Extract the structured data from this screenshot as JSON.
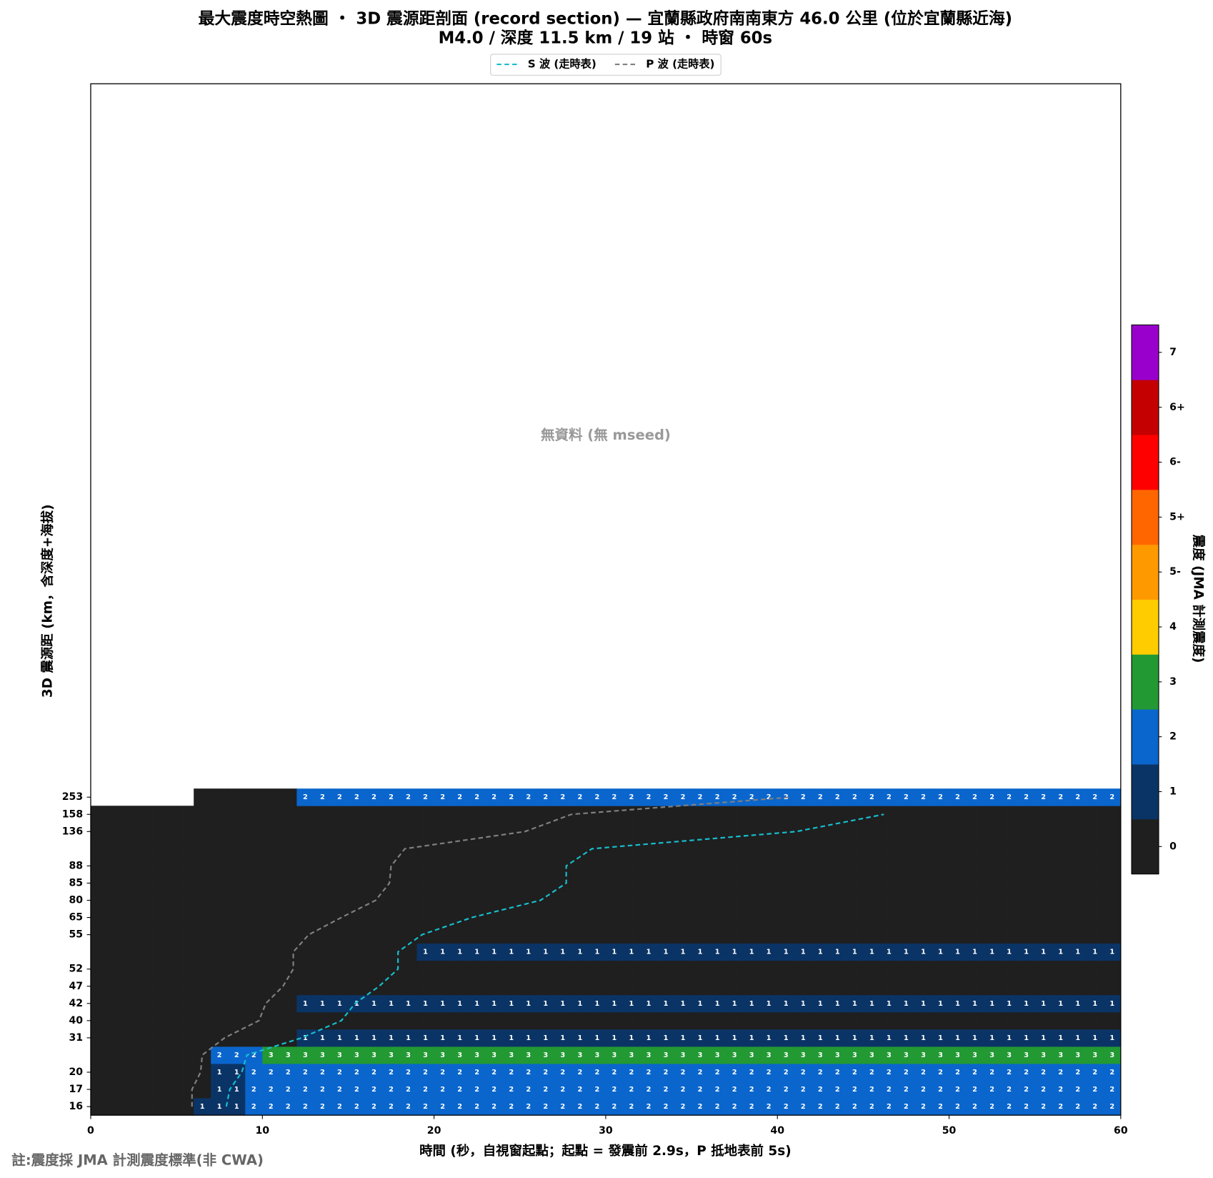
{
  "chart_data": {
    "type": "heatmap",
    "title": "最大震度時空熱圖 ・ 3D 震源距剖面 (record section) — 宜蘭縣政府南南東方  46.0  公里 (位於宜蘭縣近海)",
    "subtitle": "M4.0 / 深度 11.5 km / 19 站 ・ 時窗 60s",
    "x_label": "時間 (秒，自視窗起點；起點 = 發震前 2.9s，P 抵地表前 5s)",
    "y_label": "3D 震源距 (km，含深度+海拔)",
    "colorbar_label": "震度 (JMA 計測震度)",
    "annotation": "無資料 (無 mseed)",
    "categories": [
      "16",
      "17",
      "20",
      null,
      "31",
      "40",
      "42",
      "47",
      "52",
      null,
      "55",
      "65",
      "80",
      "85",
      "88",
      null,
      "136",
      "158",
      "253"
    ],
    "bins": [
      0,
      1,
      2,
      3,
      4,
      5,
      6,
      7,
      8,
      9,
      10,
      11,
      12,
      13,
      14,
      15,
      16,
      17,
      18,
      19,
      20,
      21,
      22,
      23,
      24,
      25,
      26,
      27,
      28,
      29,
      30,
      31,
      32,
      33,
      34,
      35,
      36,
      37,
      38,
      39,
      40,
      41,
      42,
      43,
      44,
      45,
      46,
      47,
      48,
      49,
      50,
      51,
      52,
      53,
      54,
      55,
      56,
      57,
      58,
      59,
      60
    ],
    "xlim": [
      0,
      60
    ],
    "xticks": [
      0,
      10,
      20,
      30,
      40,
      50,
      60
    ],
    "levels": [
      "0",
      "1",
      "2",
      "3",
      "4",
      "5-",
      "5+",
      "6-",
      "6+",
      "7"
    ],
    "colors": [
      "#1f1f1f",
      "#0b3466",
      "#0a66cc",
      "#229933",
      "#ffcc00",
      "#ff9900",
      "#ff6600",
      "#ff0000",
      "#c40000",
      "#9900cc"
    ],
    "cells": [
      [
        0,
        0,
        0,
        0,
        0,
        0,
        1,
        1,
        1,
        2,
        2,
        2,
        2,
        2,
        2,
        2,
        2,
        2,
        2,
        2,
        2,
        2,
        2,
        2,
        2,
        2,
        2,
        2,
        2,
        2,
        2,
        2,
        2,
        2,
        2,
        2,
        2,
        2,
        2,
        2,
        2,
        2,
        2,
        2,
        2,
        2,
        2,
        2,
        2,
        2,
        2,
        2,
        2,
        2,
        2,
        2,
        2,
        2,
        2,
        2
      ],
      [
        0,
        0,
        0,
        0,
        0,
        0,
        0,
        1,
        1,
        2,
        2,
        2,
        2,
        2,
        2,
        2,
        2,
        2,
        2,
        2,
        2,
        2,
        2,
        2,
        2,
        2,
        2,
        2,
        2,
        2,
        2,
        2,
        2,
        2,
        2,
        2,
        2,
        2,
        2,
        2,
        2,
        2,
        2,
        2,
        2,
        2,
        2,
        2,
        2,
        2,
        2,
        2,
        2,
        2,
        2,
        2,
        2,
        2,
        2,
        2
      ],
      [
        0,
        0,
        0,
        0,
        0,
        0,
        0,
        1,
        1,
        2,
        2,
        2,
        2,
        2,
        2,
        2,
        2,
        2,
        2,
        2,
        2,
        2,
        2,
        2,
        2,
        2,
        2,
        2,
        2,
        2,
        2,
        2,
        2,
        2,
        2,
        2,
        2,
        2,
        2,
        2,
        2,
        2,
        2,
        2,
        2,
        2,
        2,
        2,
        2,
        2,
        2,
        2,
        2,
        2,
        2,
        2,
        2,
        2,
        2,
        2
      ],
      [
        0,
        0,
        0,
        0,
        0,
        0,
        0,
        2,
        2,
        2,
        3,
        3,
        3,
        3,
        3,
        3,
        3,
        3,
        3,
        3,
        3,
        3,
        3,
        3,
        3,
        3,
        3,
        3,
        3,
        3,
        3,
        3,
        3,
        3,
        3,
        3,
        3,
        3,
        3,
        3,
        3,
        3,
        3,
        3,
        3,
        3,
        3,
        3,
        3,
        3,
        3,
        3,
        3,
        3,
        3,
        3,
        3,
        3,
        3,
        3
      ],
      [
        0,
        0,
        0,
        0,
        0,
        0,
        0,
        0,
        0,
        0,
        0,
        0,
        1,
        1,
        1,
        1,
        1,
        1,
        1,
        1,
        1,
        1,
        1,
        1,
        1,
        1,
        1,
        1,
        1,
        1,
        1,
        1,
        1,
        1,
        1,
        1,
        1,
        1,
        1,
        1,
        1,
        1,
        1,
        1,
        1,
        1,
        1,
        1,
        1,
        1,
        1,
        1,
        1,
        1,
        1,
        1,
        1,
        1,
        1,
        1
      ],
      [
        0,
        0,
        0,
        0,
        0,
        0,
        0,
        0,
        0,
        0,
        0,
        0,
        0,
        0,
        0,
        0,
        0,
        0,
        0,
        0,
        0,
        0,
        0,
        0,
        0,
        0,
        0,
        0,
        0,
        0,
        0,
        0,
        0,
        0,
        0,
        0,
        0,
        0,
        0,
        0,
        0,
        0,
        0,
        0,
        0,
        0,
        0,
        0,
        0,
        0,
        0,
        0,
        0,
        0,
        0,
        0,
        0,
        0,
        0,
        0
      ],
      [
        0,
        0,
        0,
        0,
        0,
        0,
        0,
        0,
        0,
        0,
        0,
        0,
        1,
        1,
        1,
        1,
        1,
        1,
        1,
        1,
        1,
        1,
        1,
        1,
        1,
        1,
        1,
        1,
        1,
        1,
        1,
        1,
        1,
        1,
        1,
        1,
        1,
        1,
        1,
        1,
        1,
        1,
        1,
        1,
        1,
        1,
        1,
        1,
        1,
        1,
        1,
        1,
        1,
        1,
        1,
        1,
        1,
        1,
        1,
        1
      ],
      [
        0,
        0,
        0,
        0,
        0,
        0,
        0,
        0,
        0,
        0,
        0,
        0,
        0,
        0,
        0,
        0,
        0,
        0,
        0,
        0,
        0,
        0,
        0,
        0,
        0,
        0,
        0,
        0,
        0,
        0,
        0,
        0,
        0,
        0,
        0,
        0,
        0,
        0,
        0,
        0,
        0,
        0,
        0,
        0,
        0,
        0,
        0,
        0,
        0,
        0,
        0,
        0,
        0,
        0,
        0,
        0,
        0,
        0,
        0,
        0
      ],
      [
        0,
        0,
        0,
        0,
        0,
        0,
        0,
        0,
        0,
        0,
        0,
        0,
        0,
        0,
        0,
        0,
        0,
        0,
        0,
        0,
        0,
        0,
        0,
        0,
        0,
        0,
        0,
        0,
        0,
        0,
        0,
        0,
        0,
        0,
        0,
        0,
        0,
        0,
        0,
        0,
        0,
        0,
        0,
        0,
        0,
        0,
        0,
        0,
        0,
        0,
        0,
        0,
        0,
        0,
        0,
        0,
        0,
        0,
        0,
        0
      ],
      [
        0,
        0,
        0,
        0,
        0,
        0,
        0,
        0,
        0,
        0,
        0,
        0,
        0,
        0,
        0,
        0,
        0,
        0,
        0,
        1,
        1,
        1,
        1,
        1,
        1,
        1,
        1,
        1,
        1,
        1,
        1,
        1,
        1,
        1,
        1,
        1,
        1,
        1,
        1,
        1,
        1,
        1,
        1,
        1,
        1,
        1,
        1,
        1,
        1,
        1,
        1,
        1,
        1,
        1,
        1,
        1,
        1,
        1,
        1,
        1
      ],
      [
        0,
        0,
        0,
        0,
        0,
        0,
        0,
        0,
        0,
        0,
        0,
        0,
        0,
        0,
        0,
        0,
        0,
        0,
        0,
        0,
        0,
        0,
        0,
        0,
        0,
        0,
        0,
        0,
        0,
        0,
        0,
        0,
        0,
        0,
        0,
        0,
        0,
        0,
        0,
        0,
        0,
        0,
        0,
        0,
        0,
        0,
        0,
        0,
        0,
        0,
        0,
        0,
        0,
        0,
        0,
        0,
        0,
        0,
        0,
        0
      ],
      [
        0,
        0,
        0,
        0,
        0,
        0,
        0,
        0,
        0,
        0,
        0,
        0,
        0,
        0,
        0,
        0,
        0,
        0,
        0,
        0,
        0,
        0,
        0,
        0,
        0,
        0,
        0,
        0,
        0,
        0,
        0,
        0,
        0,
        0,
        0,
        0,
        0,
        0,
        0,
        0,
        0,
        0,
        0,
        0,
        0,
        0,
        0,
        0,
        0,
        0,
        0,
        0,
        0,
        0,
        0,
        0,
        0,
        0,
        0,
        0
      ],
      [
        0,
        0,
        0,
        0,
        0,
        0,
        0,
        0,
        0,
        0,
        0,
        0,
        0,
        0,
        0,
        0,
        0,
        0,
        0,
        0,
        0,
        0,
        0,
        0,
        0,
        0,
        0,
        0,
        0,
        0,
        0,
        0,
        0,
        0,
        0,
        0,
        0,
        0,
        0,
        0,
        0,
        0,
        0,
        0,
        0,
        0,
        0,
        0,
        0,
        0,
        0,
        0,
        0,
        0,
        0,
        0,
        0,
        0,
        0,
        0
      ],
      [
        0,
        0,
        0,
        0,
        0,
        0,
        0,
        0,
        0,
        0,
        0,
        0,
        0,
        0,
        0,
        0,
        0,
        0,
        0,
        0,
        0,
        0,
        0,
        0,
        0,
        0,
        0,
        0,
        0,
        0,
        0,
        0,
        0,
        0,
        0,
        0,
        0,
        0,
        0,
        0,
        0,
        0,
        0,
        0,
        0,
        0,
        0,
        0,
        0,
        0,
        0,
        0,
        0,
        0,
        0,
        0,
        0,
        0,
        0,
        0
      ],
      [
        0,
        0,
        0,
        0,
        0,
        0,
        0,
        0,
        0,
        0,
        0,
        0,
        0,
        0,
        0,
        0,
        0,
        0,
        0,
        0,
        0,
        0,
        0,
        0,
        0,
        0,
        0,
        0,
        0,
        0,
        0,
        0,
        0,
        0,
        0,
        0,
        0,
        0,
        0,
        0,
        0,
        0,
        0,
        0,
        0,
        0,
        0,
        0,
        0,
        0,
        0,
        0,
        0,
        0,
        0,
        0,
        0,
        0,
        0,
        0
      ],
      [
        0,
        0,
        0,
        0,
        0,
        0,
        0,
        0,
        0,
        0,
        0,
        0,
        0,
        0,
        0,
        0,
        0,
        0,
        0,
        0,
        0,
        0,
        0,
        0,
        0,
        0,
        0,
        0,
        0,
        0,
        0,
        0,
        0,
        0,
        0,
        0,
        0,
        0,
        0,
        0,
        0,
        0,
        0,
        0,
        0,
        0,
        0,
        0,
        0,
        0,
        0,
        0,
        0,
        0,
        0,
        0,
        0,
        0,
        0,
        0
      ],
      [
        0,
        0,
        0,
        0,
        0,
        0,
        0,
        0,
        0,
        0,
        0,
        0,
        0,
        0,
        0,
        0,
        0,
        0,
        0,
        0,
        0,
        0,
        0,
        0,
        0,
        0,
        0,
        0,
        0,
        0,
        0,
        0,
        0,
        0,
        0,
        0,
        0,
        0,
        0,
        0,
        0,
        0,
        0,
        0,
        0,
        0,
        0,
        0,
        0,
        0,
        0,
        0,
        0,
        0,
        0,
        0,
        0,
        0,
        0,
        0
      ],
      [
        0,
        0,
        0,
        0,
        0,
        0,
        0,
        0,
        0,
        0,
        0,
        0,
        0,
        0,
        0,
        0,
        0,
        0,
        0,
        0,
        0,
        0,
        0,
        0,
        0,
        0,
        0,
        0,
        0,
        0,
        0,
        0,
        0,
        0,
        0,
        0,
        0,
        0,
        0,
        0,
        0,
        0,
        0,
        0,
        0,
        0,
        0,
        0,
        0,
        0,
        0,
        0,
        0,
        0,
        0,
        0,
        0,
        0,
        0,
        0
      ],
      [
        null,
        null,
        null,
        null,
        null,
        null,
        0,
        0,
        0,
        0,
        0,
        0,
        2,
        2,
        2,
        2,
        2,
        2,
        2,
        2,
        2,
        2,
        2,
        2,
        2,
        2,
        2,
        2,
        2,
        2,
        2,
        2,
        2,
        2,
        2,
        2,
        2,
        2,
        2,
        2,
        2,
        2,
        2,
        2,
        2,
        2,
        2,
        2,
        2,
        2,
        2,
        2,
        2,
        2,
        2,
        2,
        2,
        2,
        2,
        2
      ]
    ],
    "series": [
      {
        "name": "S 波 (走時表)",
        "color": "#17becf",
        "values": [
          7.9,
          8.1,
          8.8,
          9.1,
          12.3,
          14.6,
          15.4,
          16.8,
          17.9,
          17.9,
          19.3,
          22.2,
          26.2,
          27.7,
          27.7,
          29.2,
          41.1,
          46.2,
          null
        ]
      },
      {
        "name": "P 波 (走時表)",
        "color": "#808080",
        "values": [
          5.9,
          5.9,
          6.4,
          6.5,
          7.8,
          9.8,
          10.2,
          11.2,
          11.8,
          11.8,
          12.7,
          14.6,
          16.6,
          17.4,
          17.5,
          18.3,
          25.3,
          28.0,
          40.8
        ]
      }
    ],
    "legend": "upper center"
  },
  "footnote": "註:震度採 JMA 計測震度標準(非 CWA)"
}
